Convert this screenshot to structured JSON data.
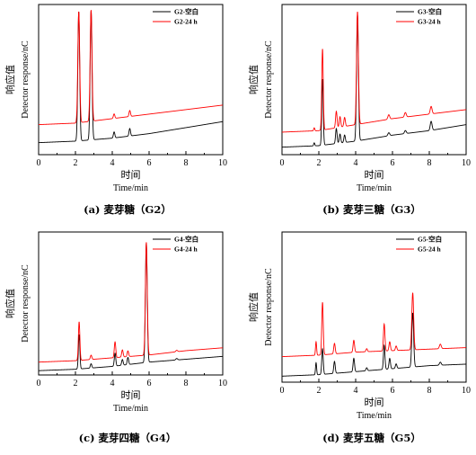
{
  "chart_data": [
    {
      "type": "line",
      "panel_label": "(a) 麦芽糖（G2）",
      "xlabel_cn": "时间",
      "xlabel": "Time/min",
      "ylabel_cn": "响应值",
      "ylabel": "Detector response/nC",
      "xlim": [
        0,
        10
      ],
      "xticks": [
        "0",
        "2",
        "4",
        "6",
        "8",
        "10"
      ],
      "legend_position": "top-right",
      "series": [
        {
          "name": "G2-空白",
          "color": "#000000",
          "baseline": [
            [
              0,
              0.08
            ],
            [
              2,
              0.09
            ],
            [
              4,
              0.11
            ],
            [
              6,
              0.14
            ],
            [
              8,
              0.18
            ],
            [
              10,
              0.22
            ]
          ],
          "peaks": [
            [
              2.18,
              0.86,
              0.05
            ],
            [
              2.85,
              0.86,
              0.05
            ],
            [
              4.1,
              0.04,
              0.04
            ],
            [
              4.95,
              0.05,
              0.04
            ]
          ]
        },
        {
          "name": "G2-24 h",
          "color": "#ff0000",
          "baseline": [
            [
              0,
              0.2
            ],
            [
              2,
              0.21
            ],
            [
              4,
              0.24
            ],
            [
              6,
              0.27
            ],
            [
              8,
              0.3
            ],
            [
              10,
              0.33
            ]
          ],
          "peaks": [
            [
              2.18,
              0.74,
              0.05
            ],
            [
              2.85,
              0.74,
              0.05
            ],
            [
              4.1,
              0.03,
              0.04
            ],
            [
              4.95,
              0.04,
              0.04
            ]
          ]
        }
      ]
    },
    {
      "type": "line",
      "panel_label": "(b) 麦芽三糖（G3）",
      "xlabel_cn": "时间",
      "xlabel": "Time/min",
      "ylabel_cn": "响应值",
      "ylabel": "Detector response/nC",
      "xlim": [
        0,
        10
      ],
      "xticks": [
        "0",
        "2",
        "4",
        "6",
        "8",
        "10"
      ],
      "legend_position": "top-right",
      "series": [
        {
          "name": "G3-空白",
          "color": "#000000",
          "baseline": [
            [
              0,
              0.05
            ],
            [
              2,
              0.06
            ],
            [
              4,
              0.09
            ],
            [
              6,
              0.13
            ],
            [
              8,
              0.16
            ],
            [
              10,
              0.2
            ]
          ],
          "peaks": [
            [
              1.75,
              0.02,
              0.03
            ],
            [
              2.2,
              0.44,
              0.04
            ],
            [
              2.95,
              0.1,
              0.04
            ],
            [
              3.15,
              0.06,
              0.04
            ],
            [
              3.4,
              0.05,
              0.04
            ],
            [
              4.1,
              0.84,
              0.05
            ],
            [
              5.8,
              0.02,
              0.05
            ],
            [
              6.7,
              0.02,
              0.05
            ],
            [
              8.1,
              0.06,
              0.05
            ]
          ]
        },
        {
          "name": "G3-24 h",
          "color": "#ff0000",
          "baseline": [
            [
              0,
              0.15
            ],
            [
              2,
              0.16
            ],
            [
              4,
              0.2
            ],
            [
              6,
              0.24
            ],
            [
              8,
              0.27
            ],
            [
              10,
              0.3
            ]
          ],
          "peaks": [
            [
              1.75,
              0.02,
              0.03
            ],
            [
              2.2,
              0.54,
              0.04
            ],
            [
              2.95,
              0.11,
              0.04
            ],
            [
              3.15,
              0.07,
              0.04
            ],
            [
              3.4,
              0.06,
              0.04
            ],
            [
              4.1,
              0.75,
              0.05
            ],
            [
              5.8,
              0.03,
              0.05
            ],
            [
              6.7,
              0.03,
              0.05
            ],
            [
              8.1,
              0.05,
              0.05
            ]
          ]
        }
      ]
    },
    {
      "type": "line",
      "panel_label": "(c) 麦芽四糖（G4）",
      "xlabel_cn": "时间",
      "xlabel": "Time/min",
      "ylabel_cn": "响应值",
      "ylabel": "Detector response/nC",
      "xlim": [
        0,
        10
      ],
      "xticks": [
        "0",
        "2",
        "4",
        "6",
        "8",
        "10"
      ],
      "legend_position": "top-right",
      "series": [
        {
          "name": "G4-空白",
          "color": "#000000",
          "baseline": [
            [
              0,
              0.03
            ],
            [
              2,
              0.04
            ],
            [
              4,
              0.06
            ],
            [
              6,
              0.09
            ],
            [
              8,
              0.11
            ],
            [
              10,
              0.13
            ]
          ],
          "peaks": [
            [
              2.2,
              0.24,
              0.04
            ],
            [
              2.85,
              0.03,
              0.04
            ],
            [
              4.15,
              0.09,
              0.04
            ],
            [
              4.55,
              0.04,
              0.04
            ],
            [
              4.85,
              0.05,
              0.04
            ],
            [
              5.85,
              0.83,
              0.05
            ],
            [
              7.5,
              0.01,
              0.05
            ]
          ]
        },
        {
          "name": "G4-24 h",
          "color": "#ff0000",
          "baseline": [
            [
              0,
              0.09
            ],
            [
              2,
              0.1
            ],
            [
              4,
              0.12
            ],
            [
              6,
              0.14
            ],
            [
              8,
              0.17
            ],
            [
              10,
              0.19
            ]
          ],
          "peaks": [
            [
              2.2,
              0.27,
              0.04
            ],
            [
              2.85,
              0.03,
              0.04
            ],
            [
              4.15,
              0.11,
              0.04
            ],
            [
              4.55,
              0.05,
              0.04
            ],
            [
              4.85,
              0.04,
              0.04
            ],
            [
              5.85,
              0.79,
              0.05
            ],
            [
              7.5,
              0.01,
              0.05
            ]
          ]
        }
      ]
    },
    {
      "type": "line",
      "panel_label": "(d) 麦芽五糖（G5）",
      "xlabel_cn": "时间",
      "xlabel": "Time/min",
      "ylabel_cn": "响应值",
      "ylabel": "Detector response/nC",
      "xlim": [
        0,
        10
      ],
      "xticks": [
        "0",
        "2",
        "4",
        "6",
        "8",
        "10"
      ],
      "legend_position": "top-right",
      "series": [
        {
          "name": "G5-空白",
          "color": "#000000",
          "baseline": [
            [
              0,
              0.04
            ],
            [
              2,
              0.05
            ],
            [
              4,
              0.07
            ],
            [
              6,
              0.09
            ],
            [
              8,
              0.11
            ],
            [
              10,
              0.12
            ]
          ],
          "peaks": [
            [
              1.85,
              0.08,
              0.03
            ],
            [
              2.2,
              0.17,
              0.04
            ],
            [
              2.85,
              0.08,
              0.04
            ],
            [
              3.9,
              0.09,
              0.04
            ],
            [
              4.6,
              0.02,
              0.04
            ],
            [
              5.55,
              0.16,
              0.04
            ],
            [
              5.85,
              0.07,
              0.04
            ],
            [
              6.2,
              0.03,
              0.04
            ],
            [
              7.1,
              0.36,
              0.05
            ],
            [
              8.6,
              0.02,
              0.05
            ]
          ]
        },
        {
          "name": "G5-24 h",
          "color": "#ff0000",
          "baseline": [
            [
              0,
              0.17
            ],
            [
              2,
              0.18
            ],
            [
              4,
              0.2
            ],
            [
              6,
              0.21
            ],
            [
              8,
              0.22
            ],
            [
              10,
              0.23
            ]
          ],
          "peaks": [
            [
              1.85,
              0.09,
              0.03
            ],
            [
              2.2,
              0.35,
              0.04
            ],
            [
              2.85,
              0.07,
              0.04
            ],
            [
              3.9,
              0.08,
              0.04
            ],
            [
              4.6,
              0.02,
              0.04
            ],
            [
              5.55,
              0.18,
              0.04
            ],
            [
              5.85,
              0.06,
              0.04
            ],
            [
              6.2,
              0.03,
              0.04
            ],
            [
              7.1,
              0.38,
              0.05
            ],
            [
              8.6,
              0.03,
              0.05
            ]
          ]
        }
      ]
    }
  ]
}
